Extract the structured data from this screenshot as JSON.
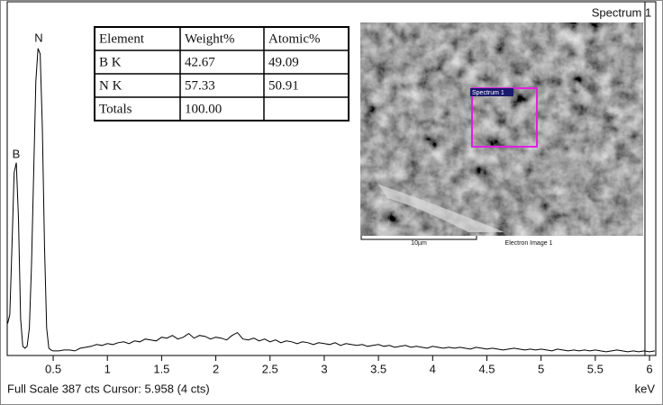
{
  "chart_data": {
    "type": "line",
    "title": "Spectrum 1",
    "x_label": "keV",
    "footer": "Full Scale 387 cts Cursor: 5.958  (4 cts)",
    "cursor": 5.958,
    "annotations": [
      "B",
      "N"
    ],
    "x": [
      0.08,
      0.1,
      0.12,
      0.14,
      0.16,
      0.18,
      0.2,
      0.22,
      0.24,
      0.26,
      0.28,
      0.3,
      0.32,
      0.34,
      0.36,
      0.38,
      0.4,
      0.42,
      0.44,
      0.46,
      0.48,
      0.5,
      0.55,
      0.6,
      0.65,
      0.7,
      0.75,
      0.8,
      0.85,
      0.9,
      0.95,
      1,
      1.05,
      1.1,
      1.15,
      1.2,
      1.25,
      1.3,
      1.35,
      1.4,
      1.45,
      1.5,
      1.55,
      1.6,
      1.65,
      1.7,
      1.75,
      1.8,
      1.85,
      1.9,
      1.95,
      2,
      2.05,
      2.1,
      2.15,
      2.2,
      2.25,
      2.3,
      2.35,
      2.4,
      2.45,
      2.5,
      2.55,
      2.6,
      2.65,
      2.7,
      2.75,
      2.8,
      2.85,
      2.9,
      2.95,
      3,
      3.05,
      3.1,
      3.15,
      3.2,
      3.25,
      3.3,
      3.35,
      3.4,
      3.45,
      3.5,
      3.55,
      3.6,
      3.65,
      3.7,
      3.75,
      3.8,
      3.85,
      3.9,
      3.95,
      4,
      4.05,
      4.1,
      4.15,
      4.2,
      4.25,
      4.3,
      4.35,
      4.4,
      4.45,
      4.5,
      4.55,
      4.6,
      4.65,
      4.7,
      4.75,
      4.8,
      4.85,
      4.9,
      4.95,
      5,
      5.05,
      5.1,
      5.15,
      5.2,
      5.25,
      5.3,
      5.35,
      5.4,
      5.45,
      5.5,
      5.55,
      5.6,
      5.65,
      5.7,
      5.75,
      5.8,
      5.85,
      5.9,
      5.95,
      6,
      6.05
    ],
    "values": [
      35,
      45,
      120,
      200,
      211,
      150,
      40,
      10,
      8,
      10,
      30,
      100,
      200,
      300,
      336,
      330,
      250,
      120,
      30,
      8,
      6,
      5,
      5,
      6,
      6,
      5,
      8,
      9,
      10,
      12,
      11,
      13,
      12,
      14,
      15,
      13,
      16,
      15,
      18,
      17,
      16,
      20,
      19,
      22,
      18,
      20,
      24,
      19,
      22,
      21,
      18,
      20,
      19,
      17,
      22,
      25,
      18,
      17,
      19,
      16,
      18,
      15,
      17,
      14,
      16,
      15,
      13,
      15,
      14,
      12,
      14,
      13,
      12,
      14,
      11,
      13,
      12,
      11,
      12,
      10,
      11,
      12,
      10,
      11,
      9,
      10,
      11,
      9,
      10,
      9,
      8,
      10,
      9,
      8,
      9,
      8,
      9,
      8,
      7,
      9,
      8,
      7,
      8,
      7,
      6,
      7,
      8,
      7,
      6,
      7,
      6,
      7,
      6,
      5,
      7,
      6,
      5,
      6,
      5,
      6,
      5,
      6,
      5,
      4,
      5,
      6,
      5,
      4,
      5,
      4,
      5,
      4,
      5
    ],
    "color": "#000000",
    "xlim": [
      0.076,
      6.058
    ],
    "ylim": [
      0,
      387
    ],
    "xticks": [
      0.5,
      1,
      1.5,
      2,
      2.5,
      3,
      3.5,
      4,
      4.5,
      5,
      5.5,
      6
    ]
  },
  "table": {
    "header": [
      "Element",
      "Weight%",
      "Atomic%"
    ],
    "rows": [
      [
        "B K",
        "42.67",
        "49.09"
      ],
      [
        "N K",
        "57.33",
        "50.91"
      ],
      [
        "Totals",
        "100.00",
        ""
      ]
    ]
  },
  "inset": {
    "region_label": "Spectrum 1",
    "scale_label": "10µm",
    "caption": "Electron Image 1"
  }
}
